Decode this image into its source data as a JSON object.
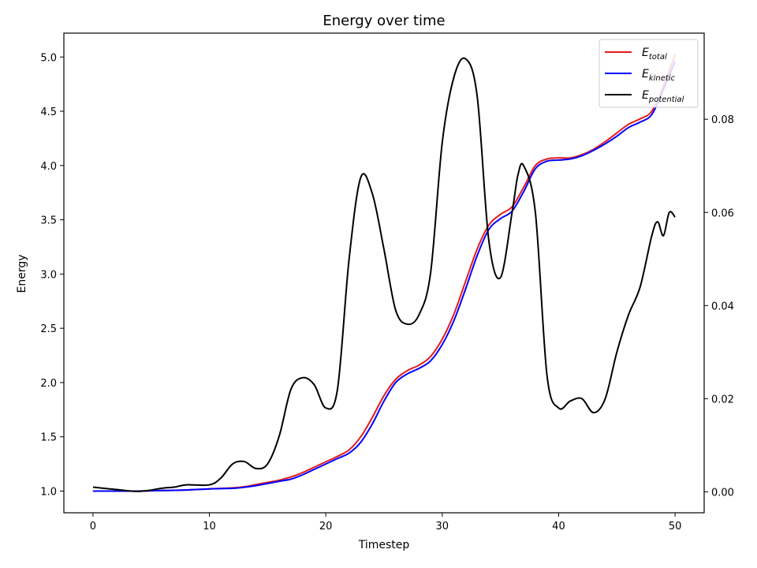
{
  "chart_data": {
    "type": "line",
    "title": "Energy over time",
    "xlabel": "Timestep",
    "ylabel": "Energy",
    "xlim": [
      -2.5,
      52.5
    ],
    "ylim": [
      0.8,
      5.22
    ],
    "y2lim": [
      -0.0045,
      0.0985
    ],
    "xticks": [
      0,
      10,
      20,
      30,
      40,
      50
    ],
    "yticks": [
      1.0,
      1.5,
      2.0,
      2.5,
      3.0,
      3.5,
      4.0,
      4.5,
      5.0
    ],
    "ytick_labels": [
      "1.0",
      "1.5",
      "2.0",
      "2.5",
      "3.0",
      "3.5",
      "4.0",
      "4.5",
      "5.0"
    ],
    "y2ticks": [
      0.0,
      0.02,
      0.04,
      0.06,
      0.08
    ],
    "y2tick_labels": [
      "0.00",
      "0.02",
      "0.04",
      "0.06",
      "0.08"
    ],
    "grid": false,
    "legend_position": "top-right",
    "series": [
      {
        "name": "E",
        "subscript": "total",
        "color": "#e41a1c",
        "axis": "left",
        "x": [
          0,
          2,
          4,
          6,
          8,
          10,
          12,
          13,
          14,
          15,
          16,
          17,
          18,
          19,
          20,
          21,
          22,
          23,
          24,
          25,
          26,
          27,
          28,
          29,
          30,
          31,
          32,
          33,
          34,
          35,
          36,
          37,
          38,
          39,
          40,
          41,
          42,
          43,
          44,
          45,
          46,
          47,
          48,
          49,
          50
        ],
        "y": [
          1.0,
          1.0,
          1.0,
          1.005,
          1.01,
          1.02,
          1.03,
          1.04,
          1.06,
          1.08,
          1.1,
          1.13,
          1.17,
          1.22,
          1.27,
          1.32,
          1.38,
          1.5,
          1.68,
          1.88,
          2.03,
          2.11,
          2.16,
          2.24,
          2.4,
          2.63,
          2.93,
          3.23,
          3.45,
          3.55,
          3.62,
          3.8,
          4.0,
          4.06,
          4.07,
          4.07,
          4.1,
          4.15,
          4.22,
          4.3,
          4.38,
          4.43,
          4.5,
          4.73,
          5.02
        ]
      },
      {
        "name": "E",
        "subscript": "kinetic",
        "color": "#0000ff",
        "axis": "left",
        "x": [
          0,
          2,
          4,
          6,
          8,
          10,
          12,
          13,
          14,
          15,
          16,
          17,
          18,
          19,
          20,
          21,
          22,
          23,
          24,
          25,
          26,
          27,
          28,
          29,
          30,
          31,
          32,
          33,
          34,
          35,
          36,
          37,
          38,
          39,
          40,
          41,
          42,
          43,
          44,
          45,
          46,
          47,
          48,
          49,
          50
        ],
        "y": [
          1.0,
          1.0,
          1.0,
          1.005,
          1.01,
          1.02,
          1.025,
          1.035,
          1.05,
          1.07,
          1.09,
          1.11,
          1.15,
          1.2,
          1.25,
          1.3,
          1.35,
          1.45,
          1.62,
          1.83,
          2.0,
          2.08,
          2.13,
          2.2,
          2.35,
          2.57,
          2.86,
          3.17,
          3.41,
          3.51,
          3.58,
          3.76,
          3.97,
          4.04,
          4.05,
          4.06,
          4.09,
          4.14,
          4.2,
          4.27,
          4.35,
          4.4,
          4.47,
          4.7,
          4.96
        ]
      },
      {
        "name": "E",
        "subscript": "potential",
        "color": "#000000",
        "axis": "right",
        "x": [
          0,
          2,
          4,
          6,
          7,
          8,
          10,
          11,
          12,
          13,
          14,
          15,
          16,
          17,
          18,
          19,
          20,
          21,
          22,
          23,
          24,
          25,
          26,
          27,
          28,
          29,
          30,
          31,
          32,
          33,
          34,
          35,
          36,
          36.5,
          37,
          38,
          39,
          40,
          41,
          42,
          43,
          44,
          45,
          46,
          47,
          48,
          48.5,
          49,
          49.5,
          50
        ],
        "y": [
          0.001,
          0.0005,
          0.0001,
          0.0008,
          0.001,
          0.0015,
          0.0015,
          0.003,
          0.006,
          0.0065,
          0.005,
          0.006,
          0.012,
          0.022,
          0.0245,
          0.023,
          0.018,
          0.022,
          0.05,
          0.0675,
          0.064,
          0.052,
          0.039,
          0.036,
          0.038,
          0.047,
          0.075,
          0.089,
          0.093,
          0.085,
          0.054,
          0.046,
          0.06,
          0.068,
          0.07,
          0.06,
          0.025,
          0.018,
          0.0195,
          0.02,
          0.017,
          0.02,
          0.03,
          0.038,
          0.044,
          0.055,
          0.058,
          0.055,
          0.06,
          0.059
        ]
      }
    ]
  }
}
